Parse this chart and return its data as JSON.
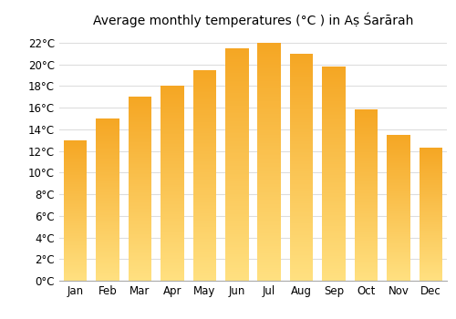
{
  "months": [
    "Jan",
    "Feb",
    "Mar",
    "Apr",
    "May",
    "Jun",
    "Jul",
    "Aug",
    "Sep",
    "Oct",
    "Nov",
    "Dec"
  ],
  "temperatures": [
    13.0,
    15.0,
    17.0,
    18.0,
    19.5,
    21.5,
    22.0,
    21.0,
    19.8,
    15.8,
    13.5,
    12.3
  ],
  "title": "Average monthly temperatures (°C ) in Aṣ Śarārah",
  "ylim": [
    0,
    23
  ],
  "yticks": [
    0,
    2,
    4,
    6,
    8,
    10,
    12,
    14,
    16,
    18,
    20,
    22
  ],
  "bar_color_top": "#F5A623",
  "bar_color_bottom": "#FFE080",
  "background_color": "#FFFFFF",
  "grid_color": "#DDDDDD",
  "title_fontsize": 10,
  "tick_fontsize": 8.5
}
